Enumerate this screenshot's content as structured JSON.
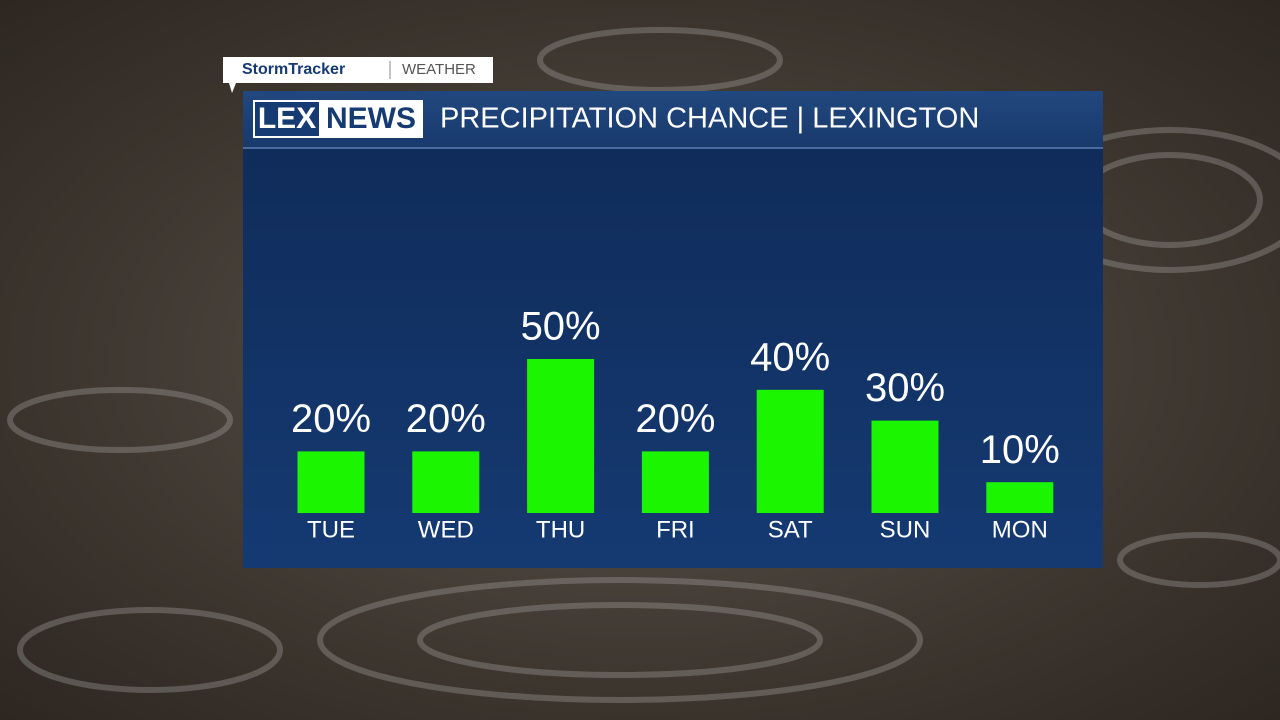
{
  "header": {
    "brand": "StormTracker",
    "section": "WEATHER",
    "logo_left": "LEX",
    "logo_right": "NEWS"
  },
  "chart_data": {
    "type": "bar",
    "title": "PRECIPITATION CHANCE | LEXINGTON",
    "categories": [
      "TUE",
      "WED",
      "THU",
      "FRI",
      "SAT",
      "SUN",
      "MON"
    ],
    "values": [
      20,
      20,
      50,
      20,
      40,
      30,
      10
    ],
    "value_labels": [
      "20%",
      "20%",
      "50%",
      "20%",
      "40%",
      "30%",
      "10%"
    ],
    "color": "#1cf500"
  }
}
